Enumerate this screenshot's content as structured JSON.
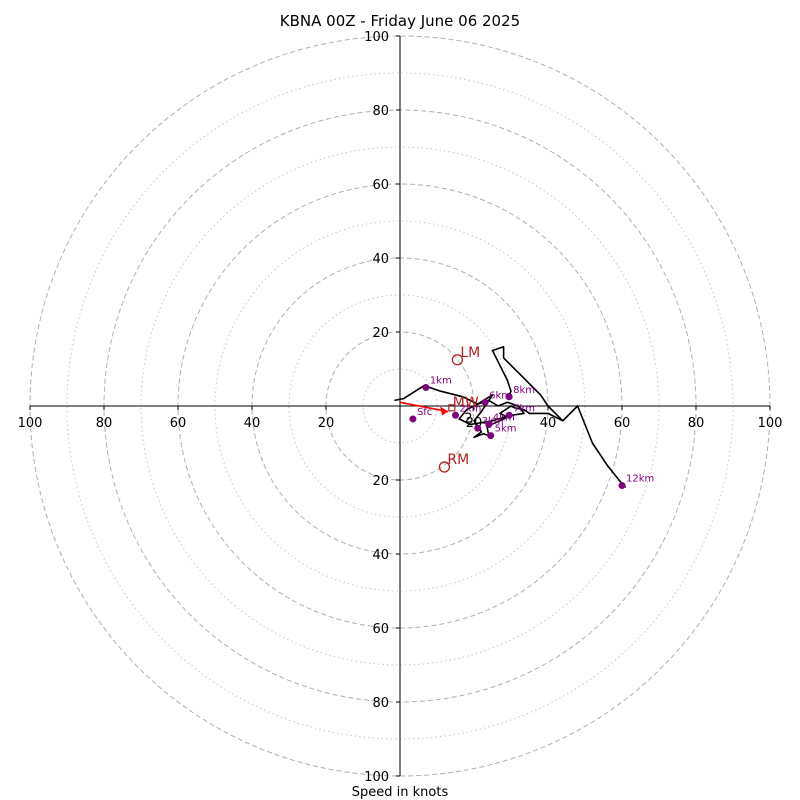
{
  "chart_data": {
    "type": "hodograph",
    "title": "KBNA 00Z - Friday June 06 2025",
    "xlabel": "Speed in knots",
    "xlim": [
      -100,
      100
    ],
    "ylim": [
      -100,
      100
    ],
    "ring_labels": [
      100,
      80,
      60,
      40,
      20,
      20,
      40,
      60,
      80,
      100
    ],
    "ring_values": [
      -100,
      -80,
      -60,
      -40,
      -20,
      20,
      40,
      60,
      80,
      100
    ],
    "ring_y_labels": [
      100,
      80,
      60,
      40,
      20,
      20,
      40,
      60,
      80,
      100
    ],
    "ring_y_values": [
      100,
      80,
      60,
      40,
      20,
      -20,
      -40,
      -60,
      -80,
      -100
    ],
    "dashed_rings": [
      20,
      40,
      60,
      80,
      100
    ],
    "dotted_rings": [
      10,
      30,
      50,
      70,
      90
    ],
    "grid": true,
    "colors": {
      "hodograph": "#000000",
      "heights": "#800080",
      "motion": "#b22222",
      "shear_vector": "#ff0000",
      "rings": "#b0b0b0"
    },
    "hodograph_line": [
      [
        -1.5,
        1.5
      ],
      [
        1,
        2
      ],
      [
        6.5,
        5.5
      ],
      [
        11,
        4
      ],
      [
        17,
        2.5
      ],
      [
        21,
        0.5
      ],
      [
        24,
        1.5
      ],
      [
        26.5,
        0
      ],
      [
        29,
        1
      ],
      [
        32,
        0
      ],
      [
        33.5,
        -2
      ],
      [
        30,
        -2.5
      ],
      [
        25,
        -4
      ],
      [
        19,
        -5
      ],
      [
        16,
        -3.5
      ],
      [
        18,
        -1
      ],
      [
        21,
        0.5
      ],
      [
        25,
        3
      ],
      [
        22,
        -1.5
      ],
      [
        20,
        -4
      ],
      [
        21.5,
        -6
      ],
      [
        22,
        -7
      ],
      [
        20,
        -8.5
      ],
      [
        22.5,
        -7.5
      ],
      [
        24,
        -8
      ],
      [
        23.5,
        -5.5
      ],
      [
        27,
        -4
      ],
      [
        29,
        -3
      ],
      [
        27,
        -2
      ],
      [
        30,
        0
      ],
      [
        31,
        -0.5
      ],
      [
        33.5,
        -1
      ],
      [
        35,
        -2
      ],
      [
        40,
        -2
      ],
      [
        44,
        -4
      ],
      [
        48,
        0
      ],
      [
        52,
        -10
      ],
      [
        56,
        -16
      ],
      [
        60,
        -21
      ],
      [
        61,
        -22
      ]
    ],
    "hodograph_line_upper": [
      [
        44,
        -4
      ],
      [
        40,
        0
      ],
      [
        38,
        3
      ],
      [
        34,
        7
      ],
      [
        30,
        11
      ],
      [
        28,
        13
      ],
      [
        28,
        16
      ],
      [
        25,
        15
      ],
      [
        27,
        11
      ],
      [
        29,
        7
      ],
      [
        30,
        4
      ],
      [
        29,
        2
      ]
    ],
    "height_points": [
      {
        "label": "Sfc",
        "u": 3.5,
        "v": -3.5
      },
      {
        "label": "1km",
        "u": 7,
        "v": 5
      },
      {
        "label": "2km",
        "u": 15,
        "v": -2.5
      },
      {
        "label": "3km",
        "u": 21,
        "v": -6
      },
      {
        "label": "4km",
        "u": 24,
        "v": -5
      },
      {
        "label": "5km",
        "u": 24.5,
        "v": -8
      },
      {
        "label": "6km",
        "u": 23,
        "v": 1
      },
      {
        "label": "7km",
        "u": 29.5,
        "v": -2.5
      },
      {
        "label": "8km",
        "u": 29.5,
        "v": 2.5
      },
      {
        "label": "12km",
        "u": 60,
        "v": -21.5
      }
    ],
    "storm_motions": [
      {
        "label": "LM",
        "u": 15.5,
        "v": 12.5
      },
      {
        "label": "RM",
        "u": 12,
        "v": -16.5
      }
    ],
    "mean_wind": {
      "label": "MW",
      "u": 14,
      "v": -0.5
    },
    "shear_vector": {
      "from": [
        0,
        1
      ],
      "to": [
        13,
        -1.5
      ]
    },
    "crosshair_labels": [
      "1",
      "2"
    ]
  }
}
